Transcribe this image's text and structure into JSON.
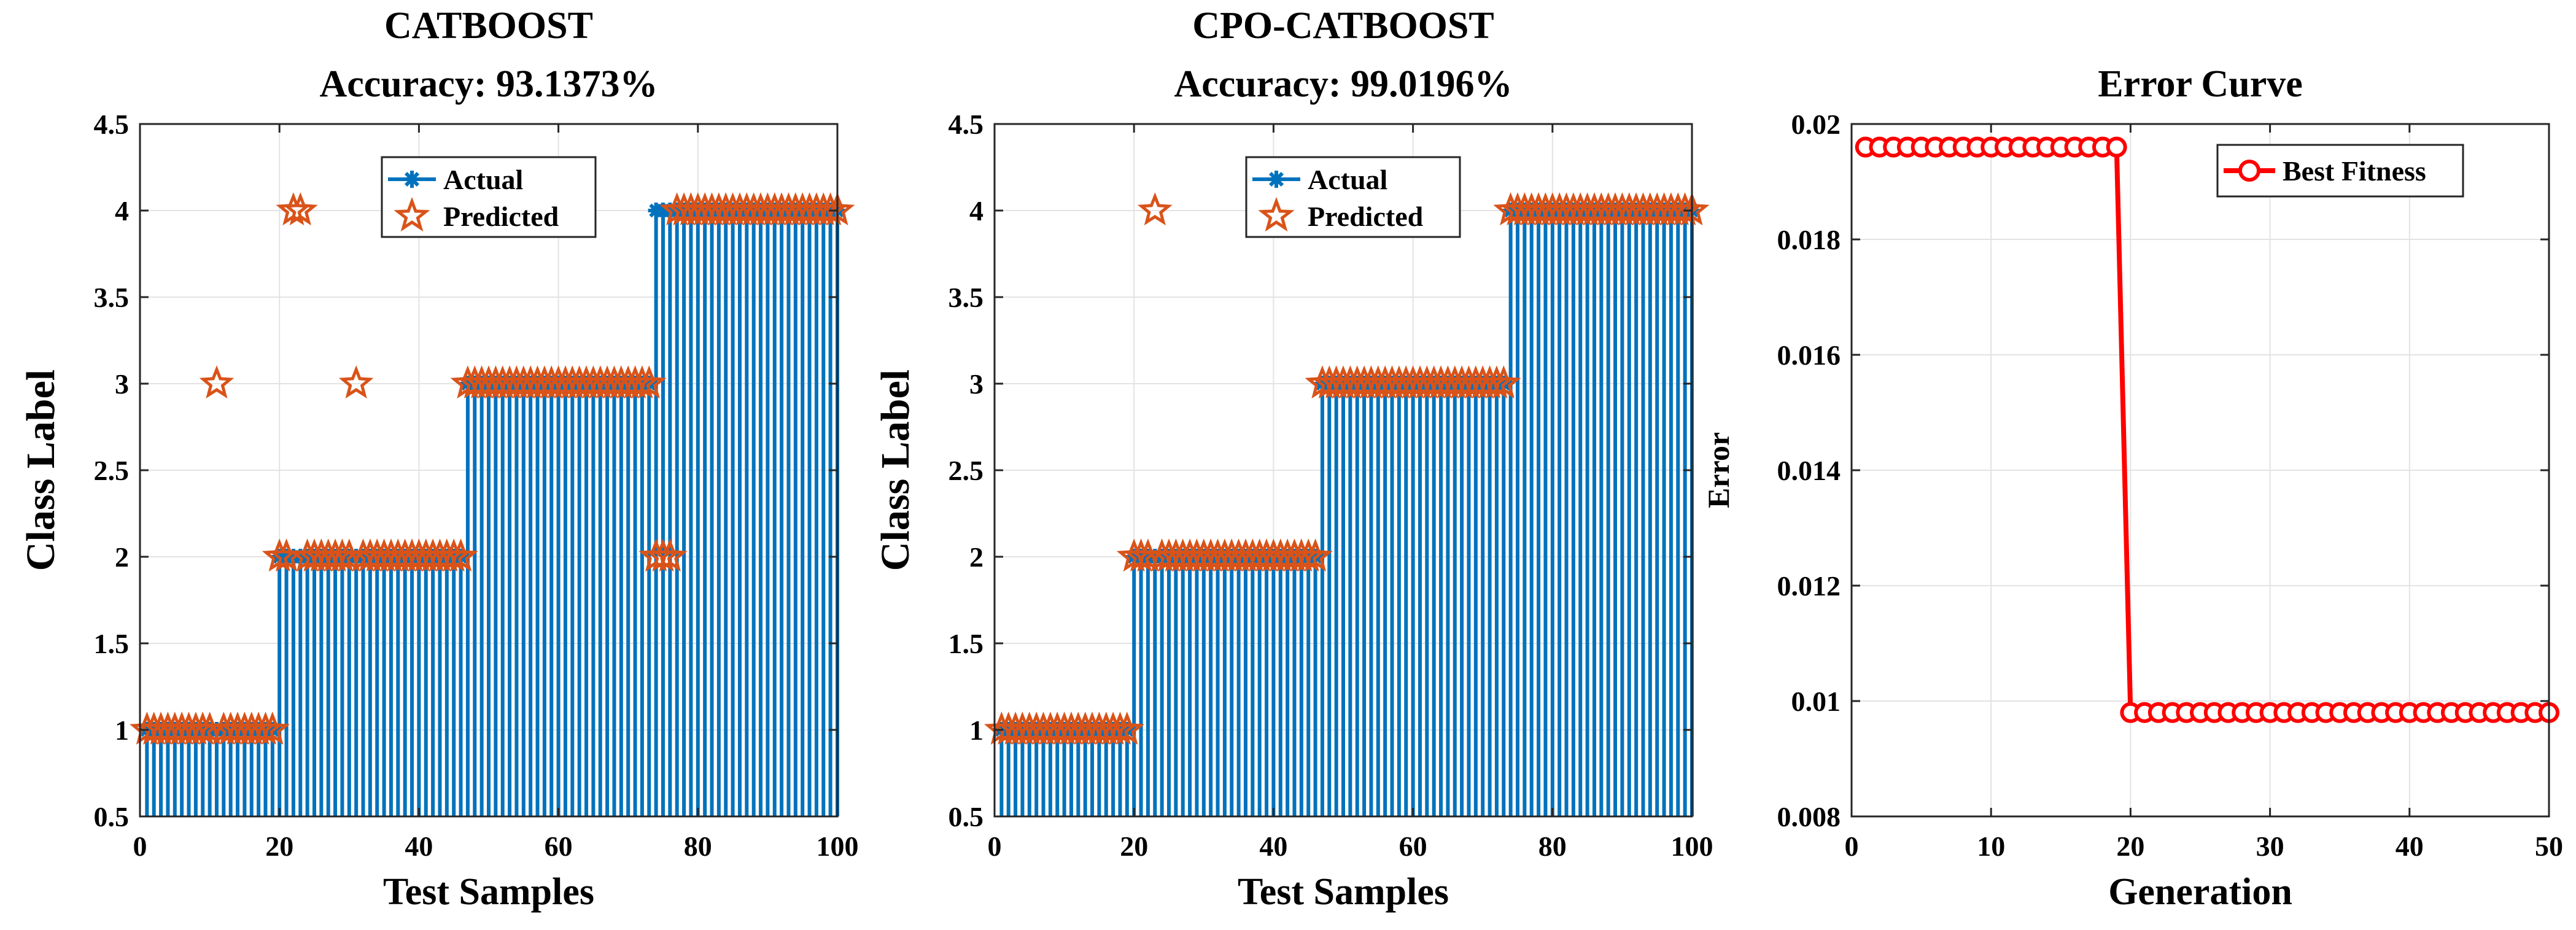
{
  "chart_data": [
    {
      "type": "bar+scatter",
      "title": "CATBOOST",
      "subtitle": "Accuracy: 93.1373%",
      "xlabel": "Test Samples",
      "ylabel": "Class Label",
      "xlim": [
        0,
        100
      ],
      "ylim": [
        0.5,
        4.5
      ],
      "xticks": [
        "0",
        "20",
        "40",
        "60",
        "80",
        "100"
      ],
      "yticks": [
        "0.5",
        "1",
        "1.5",
        "2",
        "2.5",
        "3",
        "3.5",
        "4",
        "4.5"
      ],
      "grid": true,
      "legend": {
        "position": "top-center",
        "entries": [
          "Actual",
          "Predicted"
        ]
      },
      "actual_segments": [
        {
          "start": 1,
          "end": 19,
          "value": 1
        },
        {
          "start": 20,
          "end": 46,
          "value": 2
        },
        {
          "start": 47,
          "end": 73,
          "value": 3
        },
        {
          "start": 74,
          "end": 100,
          "value": 4
        }
      ],
      "predicted_overrides": [
        {
          "x": 11,
          "value": 3
        },
        {
          "x": 22,
          "value": 4
        },
        {
          "x": 23,
          "value": 4
        },
        {
          "x": 31,
          "value": 3
        },
        {
          "x": 74,
          "value": 2
        },
        {
          "x": 75,
          "value": 2
        },
        {
          "x": 76,
          "value": 2
        }
      ],
      "colors": {
        "actual": "#0072BD",
        "predicted": "#D95319"
      }
    },
    {
      "type": "bar+scatter",
      "title": "CPO-CATBOOST",
      "subtitle": "Accuracy: 99.0196%",
      "xlabel": "Test Samples",
      "ylabel": "Class Label",
      "xlim": [
        0,
        100
      ],
      "ylim": [
        0.5,
        4.5
      ],
      "xticks": [
        "0",
        "20",
        "40",
        "60",
        "80",
        "100"
      ],
      "yticks": [
        "0.5",
        "1",
        "1.5",
        "2",
        "2.5",
        "3",
        "3.5",
        "4",
        "4.5"
      ],
      "grid": true,
      "legend": {
        "position": "top-right",
        "entries": [
          "Actual",
          "Predicted"
        ]
      },
      "actual_segments": [
        {
          "start": 1,
          "end": 19,
          "value": 1
        },
        {
          "start": 20,
          "end": 46,
          "value": 2
        },
        {
          "start": 47,
          "end": 73,
          "value": 3
        },
        {
          "start": 74,
          "end": 100,
          "value": 4
        }
      ],
      "predicted_overrides": [
        {
          "x": 23,
          "value": 4
        }
      ],
      "colors": {
        "actual": "#0072BD",
        "predicted": "#D95319"
      }
    },
    {
      "type": "line",
      "title": "Error Curve",
      "xlabel": "Generation",
      "ylabel": "Error",
      "xlim": [
        0,
        50
      ],
      "ylim": [
        0.008,
        0.02
      ],
      "xticks": [
        "0",
        "10",
        "20",
        "30",
        "40",
        "50"
      ],
      "yticks": [
        "0.008",
        "0.01",
        "0.012",
        "0.014",
        "0.016",
        "0.018",
        "0.02"
      ],
      "grid": true,
      "legend": {
        "position": "top-right",
        "entries": [
          "Best Fitness"
        ]
      },
      "series": [
        {
          "name": "Best Fitness",
          "segments": [
            {
              "from": 1,
              "to": 19,
              "value": 0.0196
            },
            {
              "from": 20,
              "to": 50,
              "value": 0.0098
            }
          ]
        }
      ],
      "colors": {
        "line": "#FF0000"
      }
    }
  ]
}
